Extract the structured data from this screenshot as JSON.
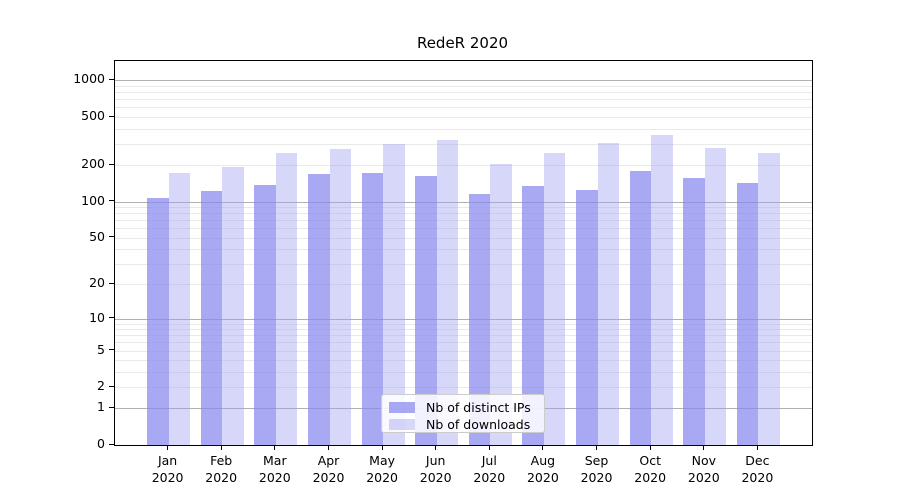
{
  "title": "RedeR 2020",
  "chart_data": {
    "type": "bar",
    "title": "RedeR 2020",
    "categories": [
      "Jan",
      "Feb",
      "Mar",
      "Apr",
      "May",
      "Jun",
      "Jul",
      "Aug",
      "Sep",
      "Oct",
      "Nov",
      "Dec"
    ],
    "category_year": "2020",
    "series": [
      {
        "name": "Nb of distinct IPs",
        "color": "#a8a8f2",
        "fill": "rgba(134,134,238,0.72)",
        "values": [
          108,
          123,
          137,
          169,
          174,
          163,
          115,
          134,
          124,
          180,
          156,
          142
        ]
      },
      {
        "name": "Nb of downloads",
        "color": "#d7d7f8",
        "fill": "rgba(160,160,242,0.42)",
        "values": [
          174,
          193,
          251,
          271,
          297,
          324,
          204,
          254,
          306,
          355,
          277,
          253
        ]
      }
    ],
    "y_scale": "log1p",
    "y_ticks": [
      0,
      1,
      2,
      5,
      10,
      20,
      50,
      100,
      200,
      500,
      1000
    ],
    "y_minor_ticks": [
      3,
      4,
      6,
      7,
      8,
      9,
      30,
      40,
      60,
      70,
      80,
      90,
      300,
      400,
      600,
      700,
      800,
      900
    ],
    "ylim": [
      0,
      1450
    ],
    "xlabel": "",
    "ylabel": "",
    "grid": "horizontal",
    "legend": {
      "position": "inside-bottom-center",
      "entries": [
        "Nb of distinct IPs",
        "Nb of downloads"
      ]
    },
    "colors": {
      "major_grid": "#b0b0b0",
      "minor_grid": "#e9e9e9",
      "axis": "#000000",
      "text": "#000000",
      "legend_border": "#cccccc"
    }
  }
}
